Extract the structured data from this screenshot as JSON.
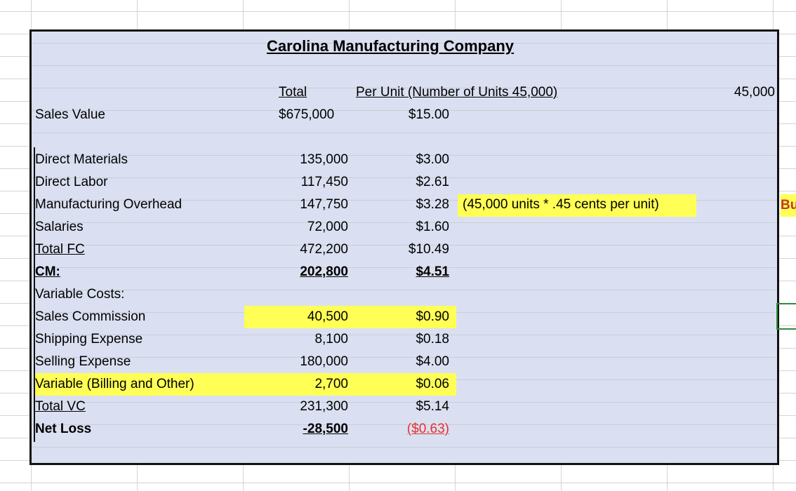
{
  "title": "Carolina Manufacturing Company",
  "header": {
    "total": "Total",
    "per_unit": "Per Unit (Number of Units 45,000)",
    "units_value": "45,000"
  },
  "sales": {
    "label": "Sales Value",
    "total": "$675,000",
    "unit": "$15.00"
  },
  "fixed_costs": [
    {
      "label": "Direct Materials",
      "total": "135,000",
      "unit": "$3.00"
    },
    {
      "label": "Direct Labor",
      "total": "117,450",
      "unit": "$2.61"
    },
    {
      "label": "Manufacturing Overhead",
      "total": "147,750",
      "unit": "$3.28",
      "note": "(45,000 units * .45 cents per unit)"
    },
    {
      "label": "Salaries",
      "total": "72,000",
      "unit": "$1.60"
    },
    {
      "label": "Total FC",
      "total": "472,200",
      "unit": "$10.49"
    }
  ],
  "cm": {
    "label": "CM:",
    "total": "202,800",
    "unit": "$4.51"
  },
  "variable_header": "Variable Costs:",
  "variable_costs": [
    {
      "label": "Sales Commission",
      "total": "40,500",
      "unit": "$0.90"
    },
    {
      "label": "Shipping Expense",
      "total": "8,100",
      "unit": "$0.18"
    },
    {
      "label": "Selling Expense",
      "total": "180,000",
      "unit": "$4.00"
    },
    {
      "label": "Variable (Billing and Other)",
      "total": "2,700",
      "unit": "$0.06"
    },
    {
      "label": "Total VC",
      "total": "231,300",
      "unit": "$5.14"
    }
  ],
  "net_loss": {
    "label": "Net Loss",
    "total": "-28,500",
    "unit": "($0.63)"
  },
  "edge_text": "Bu"
}
